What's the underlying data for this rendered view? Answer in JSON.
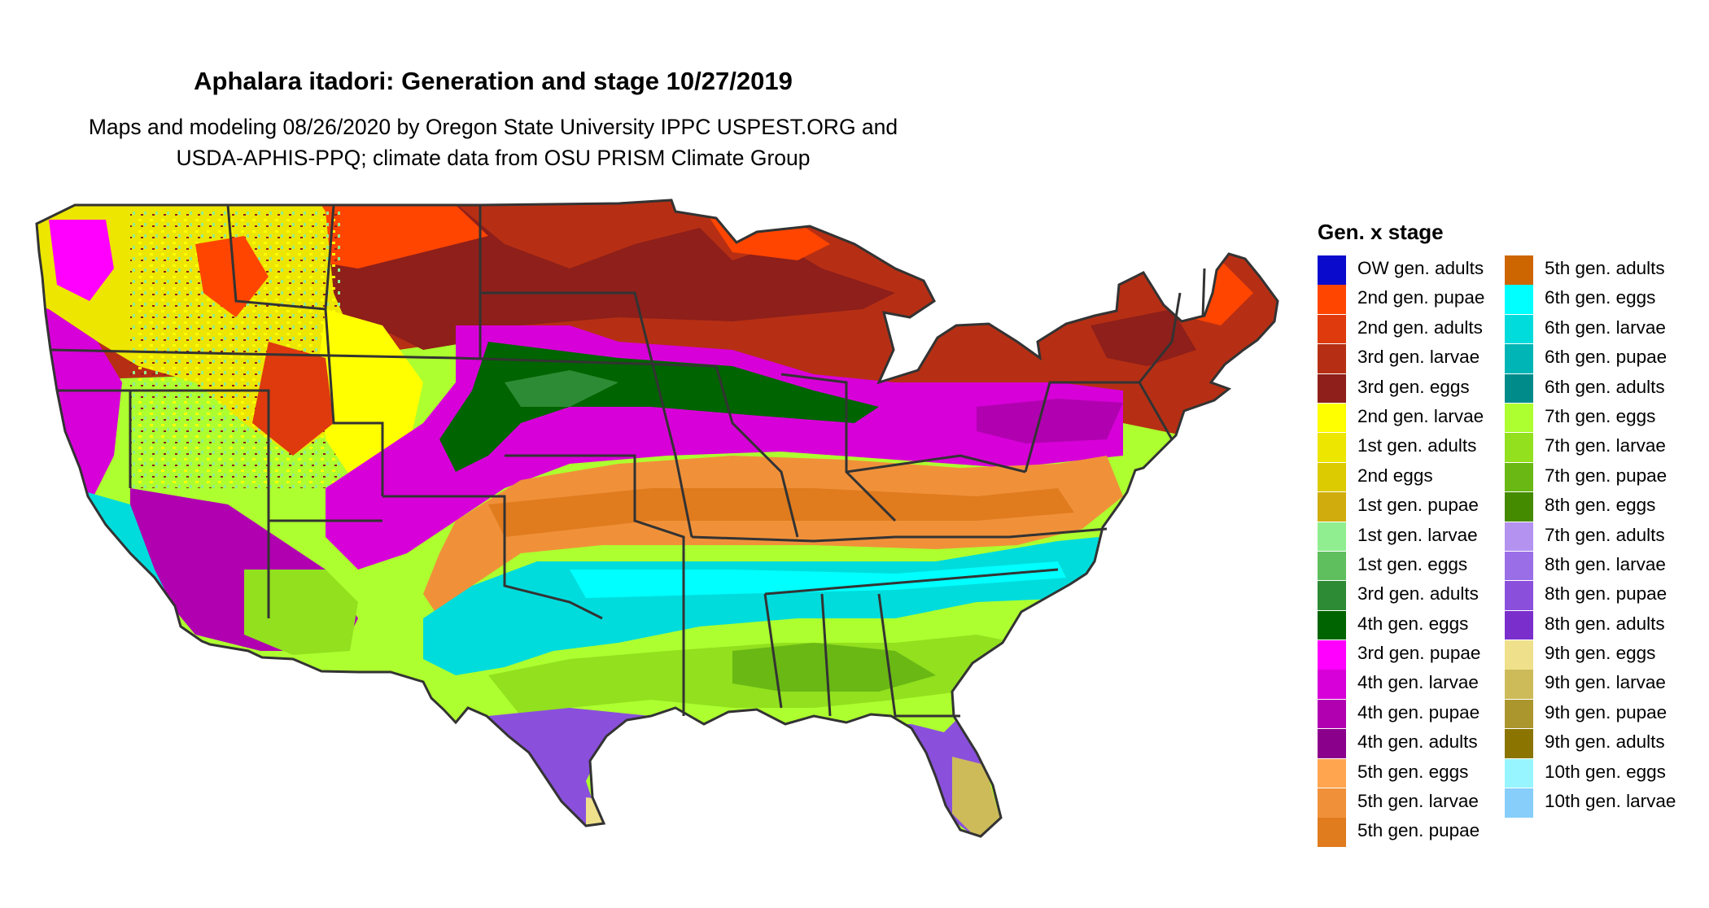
{
  "title": "Aphalara itadori: Generation and stage 10/27/2019",
  "subtitle_lines": [
    "Maps and modeling 08/26/2020 by Oregon State University IPPC USPEST.ORG and",
    "USDA-APHIS-PPQ; climate data from OSU PRISM Climate Group"
  ],
  "legend": {
    "title": "Gen. x stage",
    "columns": [
      [
        {
          "label": "OW gen. adults",
          "color": "#0a0acd"
        },
        {
          "label": "2nd gen. pupae",
          "color": "#ff4500"
        },
        {
          "label": "2nd gen. adults",
          "color": "#de3a0e"
        },
        {
          "label": "3rd gen. larvae",
          "color": "#b62f14"
        },
        {
          "label": "3rd gen. eggs",
          "color": "#8e1f1a"
        },
        {
          "label": "2nd gen. larvae",
          "color": "#ffff00"
        },
        {
          "label": "1st gen. adults",
          "color": "#ede600"
        },
        {
          "label": "2nd eggs",
          "color": "#dccb00"
        },
        {
          "label": "1st gen. pupae",
          "color": "#d0ad0c"
        },
        {
          "label": "1st gen. larvae",
          "color": "#90ee90"
        },
        {
          "label": "1st gen. eggs",
          "color": "#5fbf5f"
        },
        {
          "label": "3rd gen. adults",
          "color": "#2e8b35"
        },
        {
          "label": "4th gen. eggs",
          "color": "#006400"
        },
        {
          "label": "3rd gen. pupae",
          "color": "#ff00ff"
        },
        {
          "label": "4th gen. larvae",
          "color": "#d800d8"
        },
        {
          "label": "4th gen. pupae",
          "color": "#b000b0"
        },
        {
          "label": "4th gen. adults",
          "color": "#8b008b"
        },
        {
          "label": "5th gen. eggs",
          "color": "#ffa54f"
        },
        {
          "label": "5th gen. larvae",
          "color": "#f0913a"
        },
        {
          "label": "5th gen. pupae",
          "color": "#e07b1e"
        }
      ],
      [
        {
          "label": "5th gen. adults",
          "color": "#cd6600"
        },
        {
          "label": "6th gen. eggs",
          "color": "#00ffff"
        },
        {
          "label": "6th gen. larvae",
          "color": "#00dcdc"
        },
        {
          "label": "6th gen. pupae",
          "color": "#00b5b5"
        },
        {
          "label": "6th gen. adults",
          "color": "#008b8b"
        },
        {
          "label": "7th gen. eggs",
          "color": "#adff2f"
        },
        {
          "label": "7th gen. larvae",
          "color": "#92e01e"
        },
        {
          "label": "7th gen. pupae",
          "color": "#6ab814"
        },
        {
          "label": "8th gen. eggs",
          "color": "#458b00"
        },
        {
          "label": "7th gen. adults",
          "color": "#b392f0"
        },
        {
          "label": "8th gen. larvae",
          "color": "#9a6ee6"
        },
        {
          "label": "8th gen. pupae",
          "color": "#8a50dc"
        },
        {
          "label": "8th gen. adults",
          "color": "#7a2fcc"
        },
        {
          "label": "9th gen. eggs",
          "color": "#efe08c"
        },
        {
          "label": "9th gen. larvae",
          "color": "#cdbb5a"
        },
        {
          "label": "9th gen. pupae",
          "color": "#ab962e"
        },
        {
          "label": "9th gen. adults",
          "color": "#8b7500"
        },
        {
          "label": "10th gen. eggs",
          "color": "#97f5ff"
        },
        {
          "label": "10th gen. larvae",
          "color": "#87cefa"
        }
      ]
    ]
  }
}
